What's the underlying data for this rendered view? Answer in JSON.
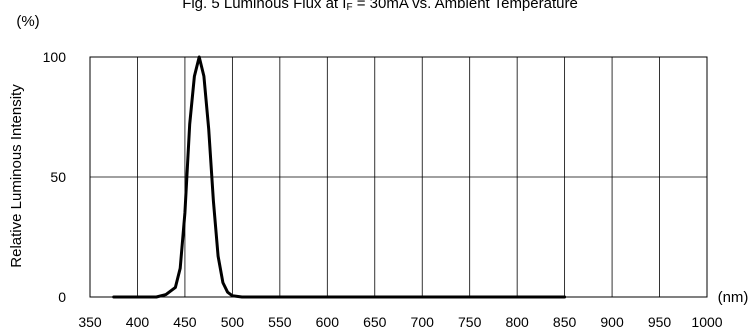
{
  "chart_data": {
    "type": "line",
    "title": "Fig. 5 Luminous Flux at I",
    "title_sub": "F",
    "title_rest": " = 30mA vs. Ambient Temperature",
    "xlabel": "",
    "x_unit": "(nm)",
    "ylabel": "Relative Luminous Intensity",
    "y_unit": "(%)",
    "xlim": [
      350,
      1000
    ],
    "ylim": [
      0,
      100
    ],
    "x_ticks": [
      "350",
      "400",
      "450",
      "500",
      "550",
      "600",
      "650",
      "700",
      "750",
      "800",
      "850",
      "900",
      "950",
      "1000"
    ],
    "y_ticks": [
      "0",
      "50",
      "100"
    ],
    "grid": true,
    "legend": "none",
    "line_color": "#000000",
    "series": [
      {
        "x": [
          375,
          400,
          420,
          430,
          440,
          445,
          450,
          455,
          460,
          465,
          470,
          475,
          480,
          485,
          490,
          495,
          500,
          510,
          550,
          600,
          700,
          800,
          850
        ],
        "y": [
          0,
          0,
          0,
          1,
          4,
          12,
          35,
          72,
          92,
          100,
          92,
          70,
          40,
          17,
          6,
          2,
          0.5,
          0,
          0,
          0,
          0,
          0,
          0
        ]
      }
    ]
  }
}
